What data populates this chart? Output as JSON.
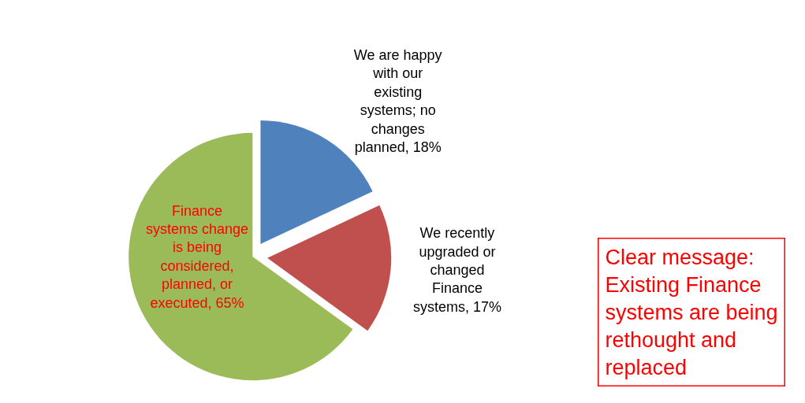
{
  "chart_data": {
    "type": "pie",
    "categories": [
      "We are happy with our existing systems; no changes planned",
      "We recently upgraded or changed Finance systems",
      "Finance systems change is being considered, planned, or executed"
    ],
    "values": [
      18,
      17,
      65
    ],
    "value_labels": [
      "18%",
      "17%",
      "65%"
    ],
    "colors": [
      "#4f81bd",
      "#c0504d",
      "#9bbb59"
    ],
    "annotations": [
      "Clear message: Existing Finance systems are being rethought and replaced"
    ],
    "legend": false
  }
}
